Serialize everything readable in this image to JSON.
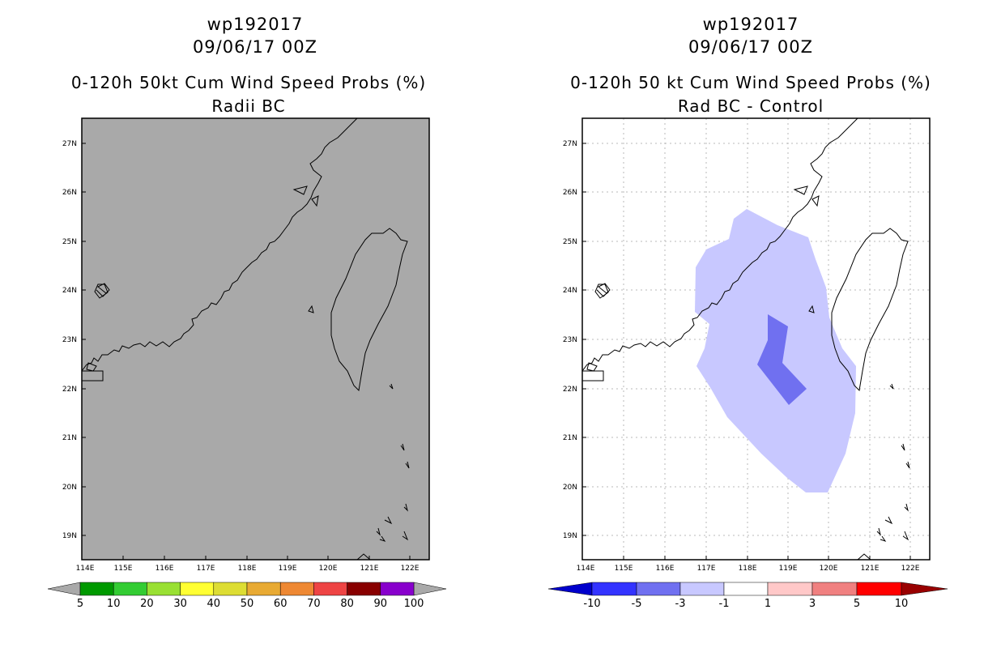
{
  "left_panel": {
    "title1": "wp192017",
    "title2": "09/06/17 00Z",
    "title3": "0-120h 50kt Cum Wind Speed Probs (%)",
    "title4": "Radii BC",
    "background_color": "#a9a9a9",
    "colorbar": {
      "colors": [
        "#009900",
        "#33cc33",
        "#99e033",
        "#ffff33",
        "#dddd33",
        "#e8aa33",
        "#ee8833",
        "#ee4444",
        "#880000",
        "#8800cc"
      ],
      "labels": [
        "5",
        "10",
        "20",
        "30",
        "40",
        "50",
        "60",
        "70",
        "80",
        "90",
        "100"
      ]
    }
  },
  "right_panel": {
    "title1": "wp192017",
    "title2": "09/06/17 00Z",
    "title3": "0-120h 50 kt Cum Wind Speed Probs (%)",
    "title4": "Rad BC - Control",
    "outer_fill_color": "#c8c8ff",
    "inner_fill_color": "#7070f0",
    "colorbar": {
      "colors": [
        "#0000cc",
        "#3333ff",
        "#7070f0",
        "#c8c8ff",
        "#ffffff",
        "#ffc8c8",
        "#f08080",
        "#ff0000",
        "#990000"
      ],
      "labels": [
        "-10",
        "-5",
        "-3",
        "-1",
        "1",
        "3",
        "5",
        "10"
      ]
    }
  },
  "map": {
    "lon_labels": [
      "114E",
      "115E",
      "116E",
      "117E",
      "118E",
      "119E",
      "120E",
      "121E",
      "122E"
    ],
    "lat_labels": [
      "27N",
      "26N",
      "25N",
      "24N",
      "23N",
      "22N",
      "21N",
      "20N",
      "19N"
    ]
  }
}
